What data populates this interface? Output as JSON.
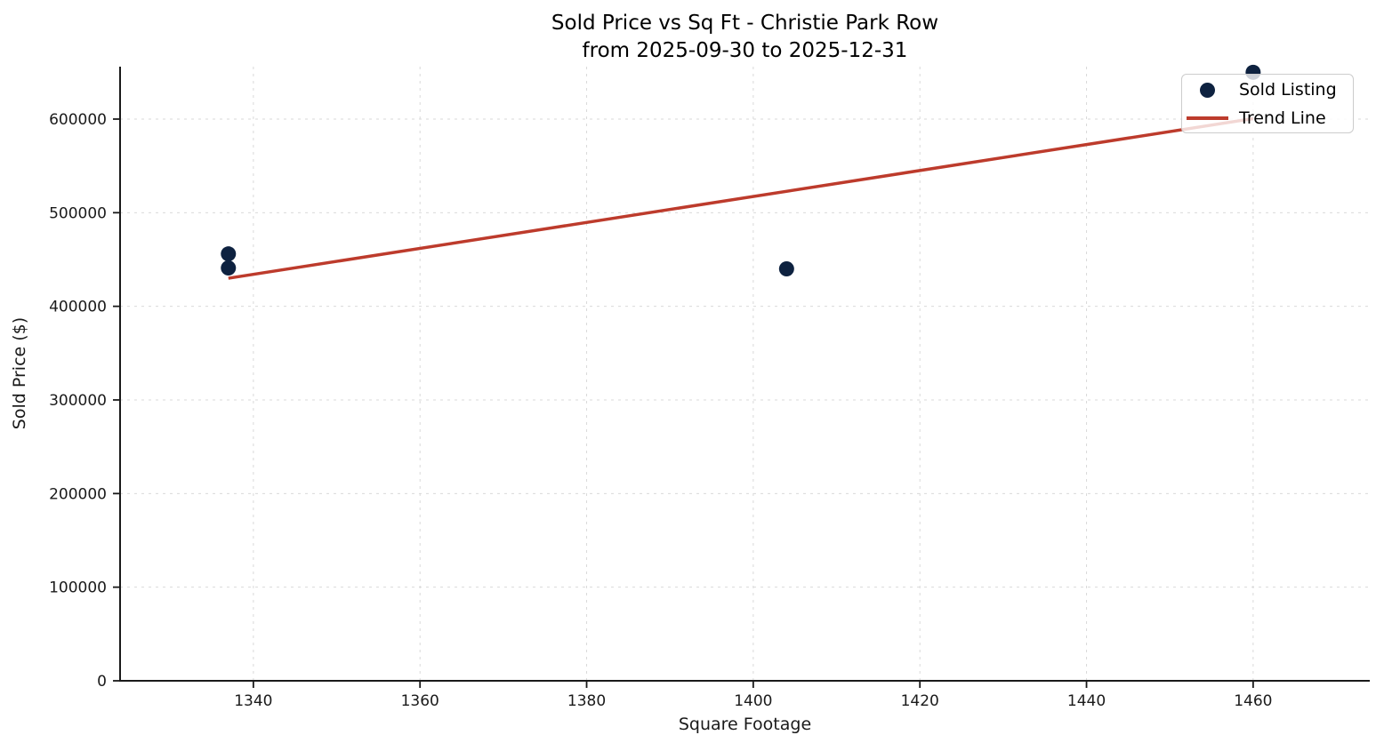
{
  "title": {
    "line1": "Sold Price vs Sq Ft - Christie Park Row",
    "line2": "from 2025-09-30 to 2025-12-31"
  },
  "legend": {
    "position": "upper right",
    "items": [
      {
        "label": "Sold Listing",
        "marker": "dot",
        "color": "#0e2240"
      },
      {
        "label": "Trend Line",
        "marker": "line",
        "color": "#bd3b2c"
      }
    ]
  },
  "colors": {
    "scatter_point": "#0e2240",
    "trend_line": "#bd3b2c",
    "gridline": "#d9d9d9",
    "axis": "#1a1a1a",
    "background": "#ffffff"
  },
  "chart_data": {
    "type": "scatter",
    "title": "Sold Price vs Sq Ft - Christie Park Row",
    "subtitle": "from 2025-09-30 to 2025-12-31",
    "xlabel": "Square Footage",
    "ylabel": "Sold Price ($)",
    "xlim": [
      1324,
      1474
    ],
    "ylim": [
      0,
      656000
    ],
    "x_ticks": [
      1340,
      1360,
      1380,
      1400,
      1420,
      1440,
      1460
    ],
    "y_ticks": [
      0,
      100000,
      200000,
      300000,
      400000,
      500000,
      600000
    ],
    "grid": true,
    "legend_position": "upper right",
    "series": [
      {
        "name": "Sold Listing",
        "type": "scatter",
        "color": "#0e2240",
        "marker_radius": 8.5,
        "points": [
          [
            1337,
            456000
          ],
          [
            1337,
            441000
          ],
          [
            1404,
            440000
          ],
          [
            1460,
            650000
          ]
        ]
      },
      {
        "name": "Trend Line",
        "type": "line",
        "color": "#bd3b2c",
        "line_width": 3.5,
        "points": [
          [
            1337,
            430000
          ],
          [
            1460,
            600500
          ]
        ]
      }
    ]
  }
}
